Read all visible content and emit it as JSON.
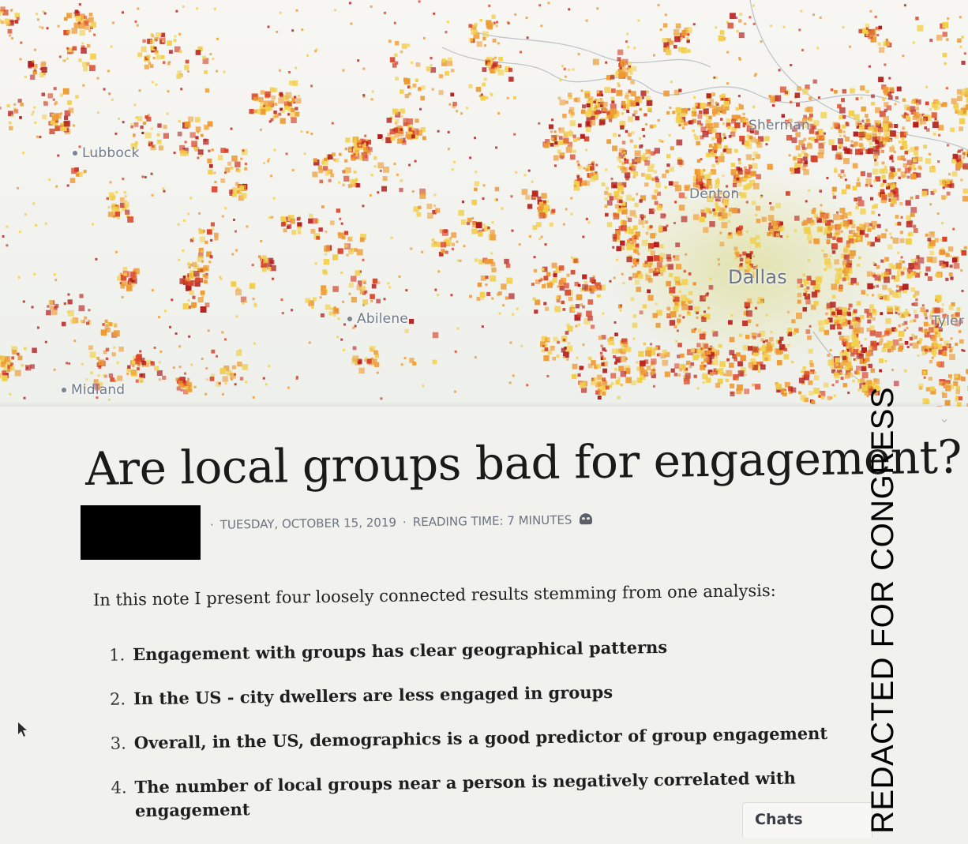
{
  "map": {
    "cities": [
      {
        "name": "Lubbock"
      },
      {
        "name": "Sherman"
      },
      {
        "name": "Denton"
      },
      {
        "name": "Dallas"
      },
      {
        "name": "Abilene"
      },
      {
        "name": "Tyler"
      },
      {
        "name": "Midland"
      }
    ],
    "colors": {
      "low": "#f2cf4a",
      "mid": "#ee9a33",
      "high": "#d8442a",
      "highest": "#b31b1b",
      "water": "#8b97a8"
    }
  },
  "article": {
    "title": "Are local groups bad for engagement?",
    "date": "TUESDAY, OCTOBER 15, 2019",
    "reading_time": "READING TIME: 7 MINUTES",
    "intro": "In this note I present four loosely connected results stemming from one analysis:",
    "findings": [
      {
        "num": "1.",
        "text": "Engagement with groups has clear geographical patterns"
      },
      {
        "num": "2.",
        "text": "In the US - city dwellers are less engaged in groups"
      },
      {
        "num": "3.",
        "text": "Overall, in the US, demographics is a good predictor of group engagement"
      },
      {
        "num": "4.",
        "text": "The number of local groups near a person is negatively correlated with engagement"
      }
    ]
  },
  "chats": {
    "label": "Chats"
  },
  "stamp": {
    "text": "REDACTED FOR CONGRESS"
  }
}
